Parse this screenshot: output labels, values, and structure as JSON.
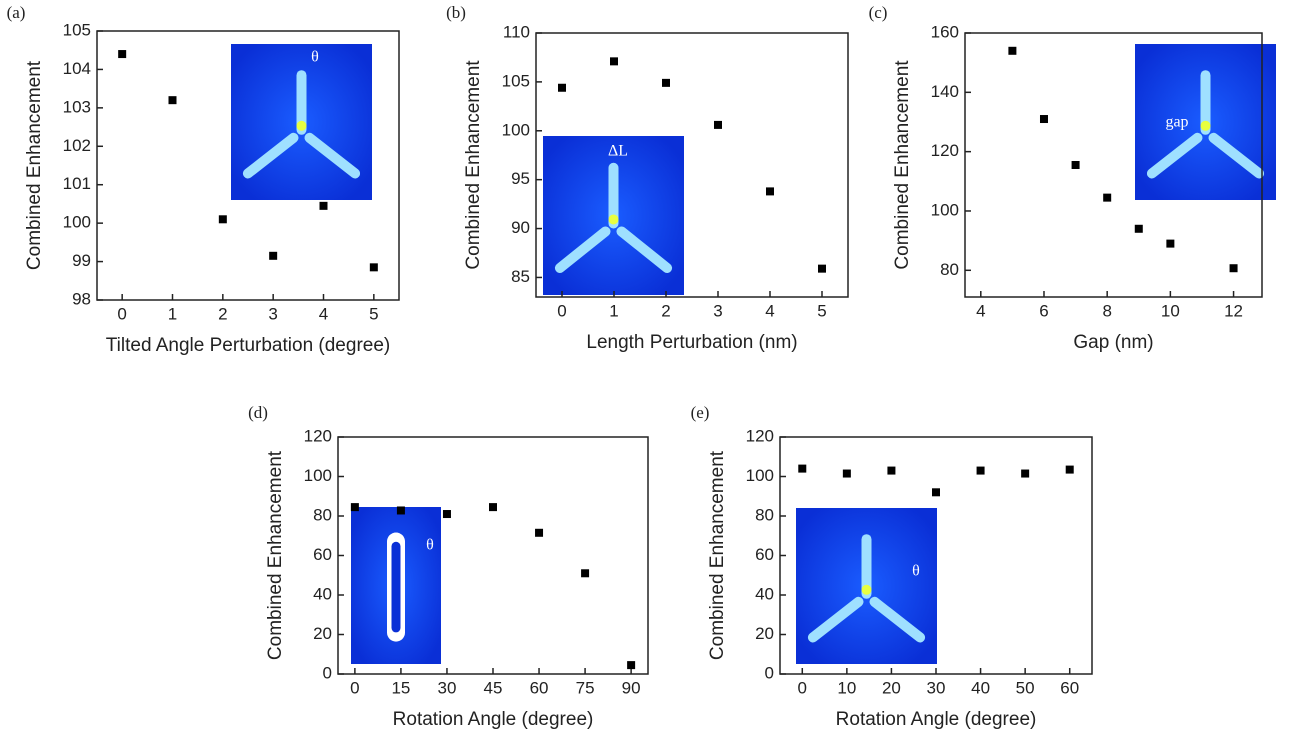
{
  "chart_data": [
    {
      "type": "scatter",
      "panel_label": "(a)",
      "x_label": "Tilted Angle Perturbation (degree)",
      "y_label": "Combined Enhancement",
      "inset_label": "θ",
      "x": [
        0,
        1,
        2,
        3,
        4,
        5
      ],
      "values": [
        104.4,
        103.2,
        100.1,
        99.15,
        100.45,
        98.85
      ],
      "color": "#000000",
      "xlim": [
        -0.5,
        5.5
      ],
      "xticks": [
        0,
        1,
        2,
        3,
        4,
        5
      ],
      "ylim": [
        98,
        105
      ],
      "yticks": [
        98,
        99,
        100,
        101,
        102,
        103,
        104,
        105
      ]
    },
    {
      "type": "scatter",
      "panel_label": "(b)",
      "x_label": "Length Perturbation (nm)",
      "y_label": "Combined Enhancement",
      "inset_label": "ΔL",
      "x": [
        0,
        1,
        2,
        3,
        4,
        5
      ],
      "values": [
        104.4,
        107.1,
        104.9,
        100.6,
        93.8,
        85.9
      ],
      "color": "#000000",
      "xlim": [
        -0.5,
        5.5
      ],
      "xticks": [
        0,
        1,
        2,
        3,
        4,
        5
      ],
      "ylim": [
        83,
        110
      ],
      "yticks": [
        85,
        90,
        95,
        100,
        105,
        110
      ]
    },
    {
      "type": "scatter",
      "panel_label": "(c)",
      "x_label": "Gap (nm)",
      "y_label": "Combined Enhancement",
      "inset_label": "gap",
      "x": [
        5,
        6,
        7,
        8,
        9,
        10,
        12
      ],
      "values": [
        154,
        131,
        115.5,
        104.5,
        94,
        89,
        80.7
      ],
      "color": "#000000",
      "xlim": [
        3.5,
        12.9
      ],
      "xticks": [
        4,
        6,
        8,
        10,
        12
      ],
      "ylim": [
        71,
        160
      ],
      "yticks": [
        80,
        100,
        120,
        140,
        160
      ]
    },
    {
      "type": "scatter",
      "panel_label": "(d)",
      "x_label": "Rotation Angle (degree)",
      "y_label": "Combined Enhancement",
      "inset_label": "θ",
      "x": [
        0,
        15,
        30,
        45,
        60,
        75,
        90
      ],
      "values": [
        84.5,
        82.8,
        81,
        84.5,
        71.5,
        51,
        4.5
      ],
      "color": "#000000",
      "xlim": [
        -5.5,
        95.5
      ],
      "xticks": [
        0,
        15,
        30,
        45,
        60,
        75,
        90
      ],
      "ylim": [
        0,
        120
      ],
      "yticks": [
        0,
        20,
        40,
        60,
        80,
        100,
        120
      ]
    },
    {
      "type": "scatter",
      "panel_label": "(e)",
      "x_label": "Rotation Angle (degree)",
      "y_label": "Combined Enhancement",
      "inset_label": "θ",
      "x": [
        0,
        10,
        20,
        30,
        40,
        50,
        60
      ],
      "values": [
        104,
        101.5,
        103,
        92,
        103,
        101.5,
        103.5
      ],
      "color": "#000000",
      "xlim": [
        -5,
        65
      ],
      "xticks": [
        0,
        10,
        20,
        30,
        40,
        50,
        60
      ],
      "ylim": [
        0,
        120
      ],
      "yticks": [
        0,
        20,
        40,
        60,
        80,
        100,
        120
      ]
    }
  ]
}
